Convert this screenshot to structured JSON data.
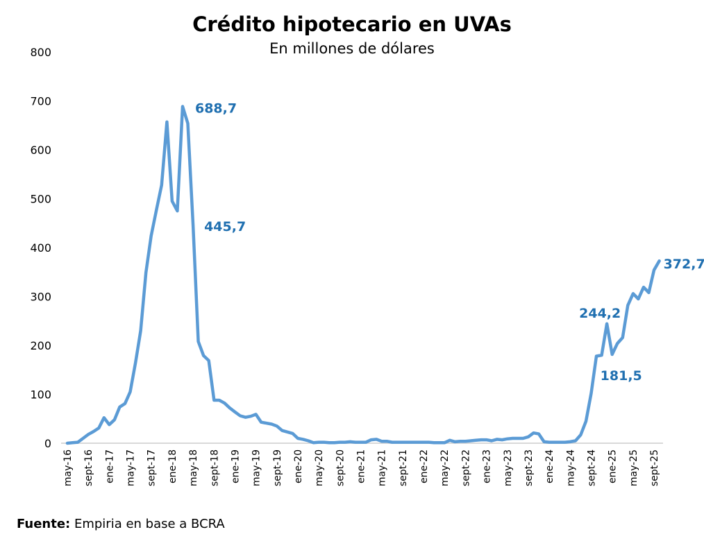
{
  "chart_data": {
    "type": "line",
    "title": "Crédito hipotecario en UVAs",
    "subtitle": "En millones de dólares",
    "xlabel": "",
    "ylabel": "",
    "ylim": [
      0,
      800
    ],
    "yticks": [
      0,
      100,
      200,
      300,
      400,
      500,
      600,
      700,
      800
    ],
    "grid": false,
    "legend": "none",
    "line_color": "#5b9bd5",
    "label_color": "#1f6fb0",
    "x": [
      "may-16",
      "jun-16",
      "jul-16",
      "ago-16",
      "sept-16",
      "oct-16",
      "nov-16",
      "dic-16",
      "ene-17",
      "feb-17",
      "mar-17",
      "abr-17",
      "may-17",
      "jun-17",
      "jul-17",
      "ago-17",
      "sept-17",
      "oct-17",
      "nov-17",
      "dic-17",
      "ene-18",
      "feb-18",
      "mar-18",
      "abr-18",
      "may-18",
      "jun-18",
      "jul-18",
      "ago-18",
      "sept-18",
      "oct-18",
      "nov-18",
      "dic-18",
      "ene-19",
      "feb-19",
      "mar-19",
      "abr-19",
      "may-19",
      "jun-19",
      "jul-19",
      "ago-19",
      "sept-19",
      "oct-19",
      "nov-19",
      "dic-19",
      "ene-20",
      "feb-20",
      "mar-20",
      "abr-20",
      "may-20",
      "jun-20",
      "jul-20",
      "ago-20",
      "sept-20",
      "oct-20",
      "nov-20",
      "dic-20",
      "ene-21",
      "feb-21",
      "mar-21",
      "abr-21",
      "may-21",
      "jun-21",
      "jul-21",
      "ago-21",
      "sept-21",
      "oct-21",
      "nov-21",
      "dic-21",
      "ene-22",
      "feb-22",
      "mar-22",
      "abr-22",
      "may-22",
      "jun-22",
      "jul-22",
      "ago-22",
      "sept-22",
      "oct-22",
      "nov-22",
      "dic-22",
      "ene-23",
      "feb-23",
      "mar-23",
      "abr-23",
      "may-23",
      "jun-23",
      "jul-23",
      "ago-23",
      "sept-23",
      "oct-23",
      "nov-23",
      "dic-23",
      "ene-24",
      "feb-24",
      "mar-24",
      "abr-24",
      "may-24",
      "jun-24",
      "jul-24",
      "ago-24",
      "sept-24",
      "oct-24",
      "nov-24",
      "dic-24",
      "ene-25",
      "feb-25",
      "mar-25",
      "abr-25",
      "may-25",
      "jun-25",
      "jul-25",
      "ago-25",
      "sept-25",
      "oct-25"
    ],
    "xticks": [
      "may-16",
      "sept-16",
      "ene-17",
      "may-17",
      "sept-17",
      "ene-18",
      "may-18",
      "sept-18",
      "ene-19",
      "may-19",
      "sept-19",
      "ene-20",
      "may-20",
      "sept-20",
      "ene-21",
      "may-21",
      "sept-21",
      "ene-22",
      "may-22",
      "sept-22",
      "ene-23",
      "may-23",
      "sept-23",
      "ene-24",
      "may-24",
      "sept-24",
      "ene-25",
      "may-25",
      "sept-25"
    ],
    "series": [
      {
        "values": [
          0,
          1,
          2,
          10,
          18,
          24,
          31,
          52,
          38,
          48,
          74,
          81,
          105,
          164,
          230,
          349,
          424,
          477,
          528,
          657,
          495,
          475,
          688.7,
          654,
          445.7,
          208,
          179,
          169,
          88,
          88,
          82,
          72,
          64,
          56,
          53,
          55,
          59,
          43,
          41,
          39,
          35,
          26,
          23,
          20,
          10,
          8,
          5,
          1,
          2,
          2,
          1,
          1,
          2,
          2,
          3,
          2,
          2,
          2,
          7,
          8,
          4,
          4,
          2,
          2,
          2,
          2,
          2,
          2,
          2,
          2,
          1,
          1,
          1,
          6,
          3,
          4,
          4,
          5,
          6,
          7,
          7,
          5,
          8,
          7,
          9,
          10,
          10,
          10,
          13,
          21,
          19,
          3,
          2,
          2,
          2,
          2,
          3,
          5,
          17,
          45,
          102,
          178,
          180,
          244.2,
          181.5,
          204,
          216,
          282,
          306,
          295,
          319,
          308,
          354,
          372.7
        ]
      }
    ],
    "annotations": [
      {
        "x": "mar-18",
        "value": 688.7,
        "text": "688,7"
      },
      {
        "x": "may-18",
        "value": 445.7,
        "text": "445,7"
      },
      {
        "x": "dic-24",
        "value": 244.2,
        "text": "244,2"
      },
      {
        "x": "ene-25",
        "value": 181.5,
        "text": "181,5"
      },
      {
        "x": "oct-25",
        "value": 372.7,
        "text": "372,7"
      }
    ]
  },
  "footer": {
    "source_label": "Fuente:",
    "source_text": " Empiria en base a BCRA"
  }
}
